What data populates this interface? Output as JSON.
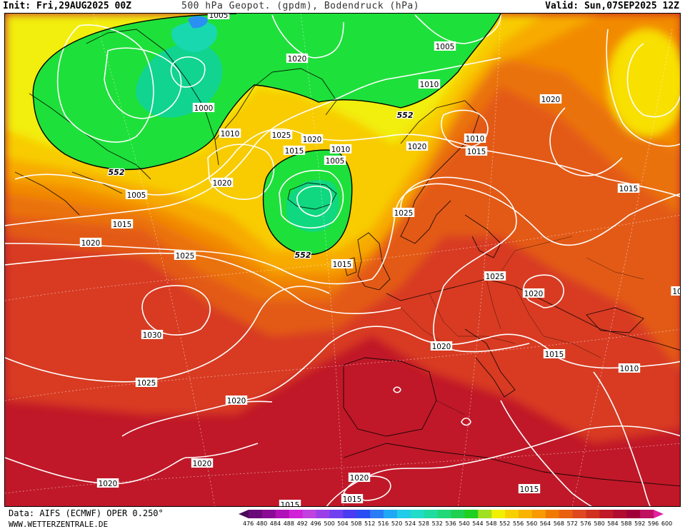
{
  "header": {
    "init": "Init: Fri,29AUG2025 00Z",
    "title": "500 hPa Geopot. (gpdm), Bodendruck (hPa)",
    "valid": "Valid: Sun,07SEP2025 12Z"
  },
  "footer": {
    "source": "Data: AIFS (ECMWF) OPER 0.250°",
    "website": "WWW.WETTERZENTRALE.DE"
  },
  "colorbar": {
    "labels": [
      "476",
      "480",
      "484",
      "488",
      "492",
      "496",
      "500",
      "504",
      "508",
      "512",
      "516",
      "520",
      "524",
      "528",
      "532",
      "536",
      "540",
      "544",
      "548",
      "552",
      "556",
      "560",
      "564",
      "568",
      "572",
      "576",
      "580",
      "584",
      "588",
      "592",
      "596",
      "600"
    ],
    "colors": [
      "#4a0a5a",
      "#6a0a7a",
      "#8a0a96",
      "#b010b8",
      "#d020d8",
      "#c040e0",
      "#9a40e8",
      "#7040f0",
      "#4a3cf0",
      "#2a4cf4",
      "#2a7cf4",
      "#20a8f4",
      "#20cce8",
      "#20dcc8",
      "#20dca0",
      "#20d878",
      "#20d050",
      "#20d020",
      "#a0e020",
      "#f0f000",
      "#f8d000",
      "#f8b400",
      "#f89a00",
      "#f07a00",
      "#e86010",
      "#e04820",
      "#d03020",
      "#c01828",
      "#b00c30",
      "#a00038",
      "#c01060",
      "#e020a0"
    ]
  },
  "isobar_labels": [
    {
      "text": "1005"
    },
    {
      "text": "1020"
    },
    {
      "text": "1005"
    },
    {
      "text": "1010"
    },
    {
      "text": "1000"
    },
    {
      "text": "1010"
    },
    {
      "text": "1025"
    },
    {
      "text": "1020"
    },
    {
      "text": "1015"
    },
    {
      "text": "1010"
    },
    {
      "text": "1005"
    },
    {
      "text": "1020"
    },
    {
      "text": "1010"
    },
    {
      "text": "1015"
    },
    {
      "text": "1020"
    },
    {
      "text": "1025"
    },
    {
      "text": "1020"
    },
    {
      "text": "1005"
    },
    {
      "text": "1015"
    },
    {
      "text": "1020"
    },
    {
      "text": "1025"
    },
    {
      "text": "1015"
    },
    {
      "text": "1025"
    },
    {
      "text": "1020"
    },
    {
      "text": "1015"
    },
    {
      "text": "1030"
    },
    {
      "text": "1020"
    },
    {
      "text": "1010"
    },
    {
      "text": "1025"
    },
    {
      "text": "1020"
    },
    {
      "text": "1020"
    },
    {
      "text": "1020"
    },
    {
      "text": "1015"
    },
    {
      "text": "1015"
    },
    {
      "text": "1020"
    },
    {
      "text": "1015"
    },
    {
      "text": "1015"
    },
    {
      "text": "10"
    }
  ],
  "height_labels": [
    {
      "text": "552"
    },
    {
      "text": "552"
    },
    {
      "text": "552"
    }
  ]
}
